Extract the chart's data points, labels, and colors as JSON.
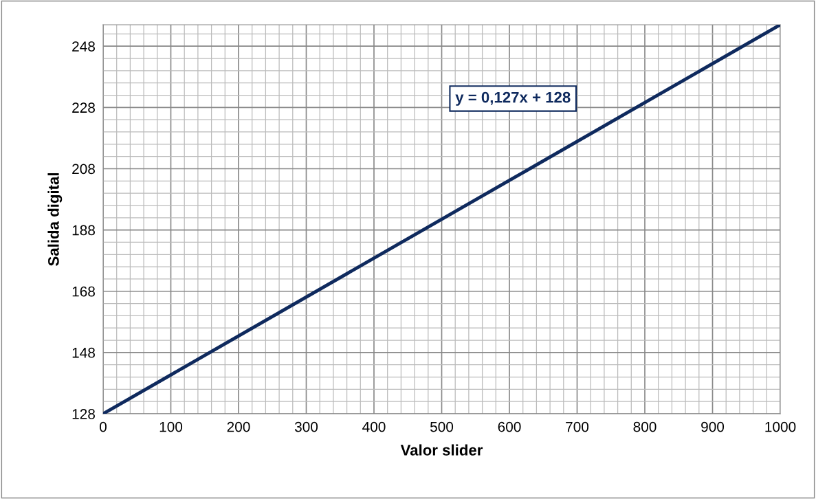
{
  "chart_data": {
    "type": "line",
    "xlabel": "Valor slider",
    "ylabel": "Salida digital",
    "x": [
      0,
      1000
    ],
    "series": [
      {
        "color": "#0f2a5e",
        "values": [
          128,
          255
        ]
      }
    ],
    "xlim": [
      0,
      1000
    ],
    "xticks": [
      0,
      100,
      200,
      300,
      400,
      500,
      600,
      700,
      800,
      900,
      1000
    ],
    "ylim": [
      128,
      255
    ],
    "yticks": [
      128,
      148,
      168,
      188,
      208,
      228,
      248
    ],
    "grid": true,
    "marker": "none",
    "line_style": "solid",
    "annotations": [
      "y = 0,127x + 128"
    ]
  }
}
